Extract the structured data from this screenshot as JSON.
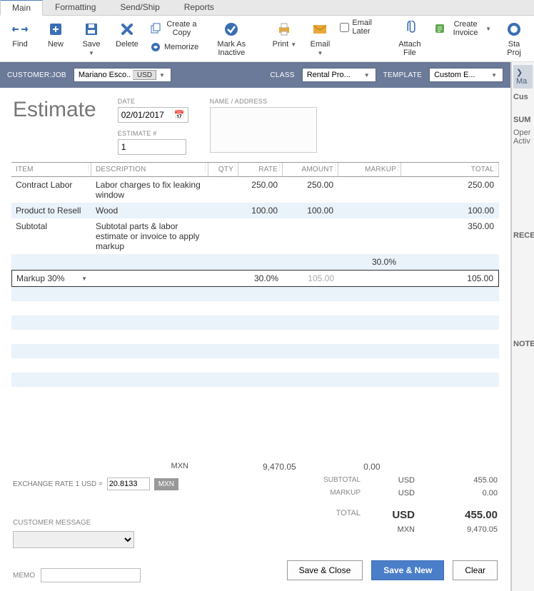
{
  "tabs": [
    "Main",
    "Formatting",
    "Send/Ship",
    "Reports"
  ],
  "active_tab": 0,
  "toolbar": {
    "find": "Find",
    "new": "New",
    "save": "Save",
    "delete": "Delete",
    "create_copy": "Create a Copy",
    "memorize": "Memorize",
    "mark_inactive": "Mark As Inactive",
    "print": "Print",
    "email": "Email",
    "email_later": "Email Later",
    "attach_file": "Attach File",
    "create_invoice": "Create Invoice",
    "start_project": "Sta Proj"
  },
  "custbar": {
    "customer_lbl": "CUSTOMER:JOB",
    "customer_val": "Mariano Esco...",
    "currency_btn": "USD",
    "class_lbl": "CLASS",
    "class_val": "Rental Pro...",
    "template_lbl": "TEMPLATE",
    "template_val": "Custom E..."
  },
  "header": {
    "title": "Estimate",
    "date_lbl": "DATE",
    "date_val": "02/01/2017",
    "estno_lbl": "ESTIMATE #",
    "estno_val": "1",
    "addr_lbl": "NAME / ADDRESS"
  },
  "columns": {
    "item": "ITEM",
    "desc": "DESCRIPTION",
    "qty": "QTY",
    "rate": "RATE",
    "amount": "AMOUNT",
    "markup": "MARKUP",
    "total": "TOTAL"
  },
  "rows": [
    {
      "item": "Contract Labor",
      "desc": "Labor charges to fix leaking window",
      "qty": "",
      "rate": "250.00",
      "amount": "250.00",
      "markup": "",
      "total": "250.00",
      "alt": false
    },
    {
      "item": "Product to Resell",
      "desc": "Wood",
      "qty": "",
      "rate": "100.00",
      "amount": "100.00",
      "markup": "",
      "total": "100.00",
      "alt": true
    },
    {
      "item": "Subtotal",
      "desc": "Subtotal parts & labor estimate or invoice to apply markup",
      "qty": "",
      "rate": "",
      "amount": "",
      "markup": "",
      "total": "350.00",
      "alt": false
    },
    {
      "item": "",
      "desc": "",
      "qty": "",
      "rate": "",
      "amount": "",
      "markup": "30.0%",
      "total": "",
      "alt": true
    },
    {
      "item": "Markup 30%",
      "desc": "",
      "qty": "",
      "rate": "30.0%",
      "amount": "105.00",
      "markup": "",
      "total": "105.00",
      "alt": false,
      "active": true,
      "faded_amount": true
    }
  ],
  "empty_rows": 8,
  "footer": {
    "mxn_lbl": "MXN",
    "mxn_amount": "9,470.05",
    "mxn_markup": "0.00",
    "xr_lbl": "EXCHANGE RATE 1 USD =",
    "xr_val": "20.8133",
    "xr_cur": "MXN",
    "subtotal_lbl": "SUBTOTAL",
    "subtotal_cur": "USD",
    "subtotal_val": "455.00",
    "markup_lbl": "MARKUP",
    "markup_cur": "USD",
    "markup_val": "0.00",
    "total_lbl": "TOTAL",
    "total_cur": "USD",
    "total_val": "455.00",
    "total_mxn_cur": "MXN",
    "total_mxn_val": "9,470.05",
    "cust_msg_lbl": "CUSTOMER MESSAGE",
    "memo_lbl": "MEMO"
  },
  "buttons": {
    "save_close": "Save & Close",
    "save_new": "Save & New",
    "clear": "Clear"
  },
  "side": {
    "hdr": "Ma",
    "cus": "Cus",
    "sum": "SUM",
    "open": "Oper",
    "activ": "Activ",
    "rece": "RECE",
    "note": "NOTE"
  },
  "colors": {
    "accent": "#4a7ec8",
    "bar": "#6b7a99",
    "alt_row": "#eaf2fa"
  }
}
